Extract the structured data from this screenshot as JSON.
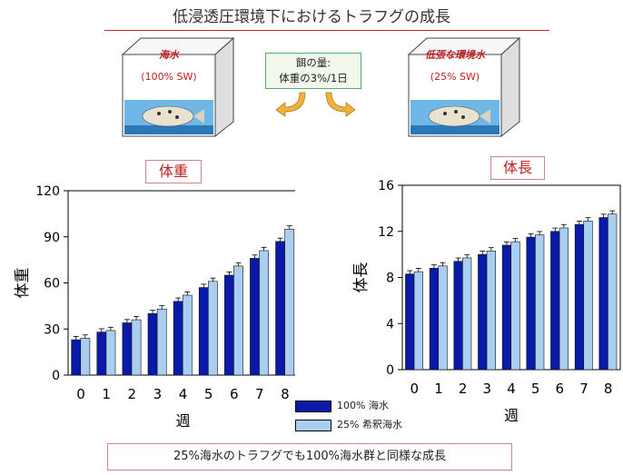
{
  "title": "低浸透圧環境下におけるトラフグの成長",
  "box_left": {
    "label": "海水",
    "sub": "(100% SW)"
  },
  "box_right": {
    "label": "低張な環境水",
    "sub": "(25% SW)"
  },
  "food": {
    "line1": "餌の量:",
    "line2": "体重の3%/1日"
  },
  "colors": {
    "series1": "#0a1aa8",
    "series2": "#a9cef0",
    "accent": "#c02020"
  },
  "legend": {
    "items": [
      {
        "label": "100% 海水"
      },
      {
        "label": "25%  希釈海水"
      }
    ]
  },
  "conclusion": "25%海水のトラフグでも100%海水群と同様な成長",
  "chart_data": [
    {
      "type": "bar",
      "title": "体重",
      "xlabel": "週",
      "ylabel": "体重",
      "ylim": [
        0,
        120
      ],
      "yticks": [
        0,
        30,
        60,
        90,
        120
      ],
      "categories": [
        "0",
        "1",
        "2",
        "3",
        "4",
        "5",
        "6",
        "7",
        "8"
      ],
      "series": [
        {
          "name": "100% 海水",
          "values": [
            23,
            28,
            34,
            40,
            48,
            57,
            65,
            76,
            87
          ]
        },
        {
          "name": "25%  希釈海水",
          "values": [
            24,
            29,
            36,
            43,
            52,
            61,
            71,
            81,
            95
          ]
        }
      ]
    },
    {
      "type": "bar",
      "title": "体長",
      "xlabel": "週",
      "ylabel": "体長",
      "ylim": [
        0,
        16
      ],
      "yticks": [
        0,
        4,
        8,
        12,
        16
      ],
      "categories": [
        "0",
        "1",
        "2",
        "3",
        "4",
        "5",
        "6",
        "7",
        "8"
      ],
      "series": [
        {
          "name": "100% 海水",
          "values": [
            8.3,
            8.8,
            9.4,
            10.0,
            10.8,
            11.5,
            12.0,
            12.6,
            13.2
          ]
        },
        {
          "name": "25%  希釈海水",
          "values": [
            8.5,
            9.0,
            9.7,
            10.3,
            11.1,
            11.7,
            12.3,
            12.9,
            13.5
          ]
        }
      ]
    }
  ]
}
